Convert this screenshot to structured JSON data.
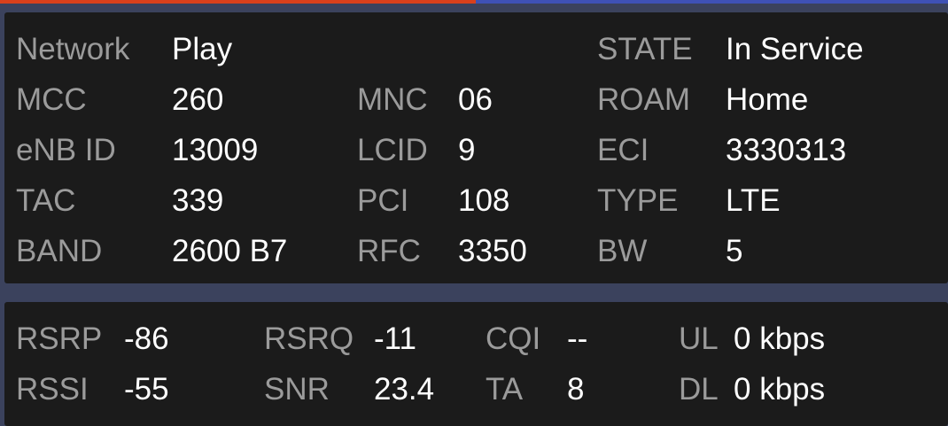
{
  "colors": {
    "progress_left": "#d9401c",
    "progress_right": "#3f51b5",
    "panel": "#1b1b1b",
    "label": "#9b9b9b",
    "value": "#ffffff"
  },
  "cell": {
    "rows": [
      [
        {
          "label": "Network",
          "value": "Play"
        },
        {
          "label": "",
          "value": ""
        },
        {
          "label": "STATE",
          "value": "In Service"
        }
      ],
      [
        {
          "label": "MCC",
          "value": "260"
        },
        {
          "label": "MNC",
          "value": "06"
        },
        {
          "label": "ROAM",
          "value": "Home"
        }
      ],
      [
        {
          "label": "eNB ID",
          "value": "13009"
        },
        {
          "label": "LCID",
          "value": "9"
        },
        {
          "label": "ECI",
          "value": "3330313"
        }
      ],
      [
        {
          "label": "TAC",
          "value": "339"
        },
        {
          "label": "PCI",
          "value": "108"
        },
        {
          "label": "TYPE",
          "value": "LTE"
        }
      ],
      [
        {
          "label": "BAND",
          "value": "2600 B7"
        },
        {
          "label": "RFC",
          "value": "3350"
        },
        {
          "label": "BW",
          "value": "5"
        }
      ]
    ]
  },
  "signal": {
    "rows": [
      [
        {
          "label": "RSRP",
          "value": "-86"
        },
        {
          "label": "RSRQ",
          "value": "-11"
        },
        {
          "label": "CQI",
          "value": "--"
        },
        {
          "label": "UL",
          "value": "0 kbps"
        }
      ],
      [
        {
          "label": "RSSI",
          "value": "-55"
        },
        {
          "label": "SNR",
          "value": "23.4"
        },
        {
          "label": "TA",
          "value": "8"
        },
        {
          "label": "DL",
          "value": "0 kbps"
        }
      ]
    ]
  }
}
